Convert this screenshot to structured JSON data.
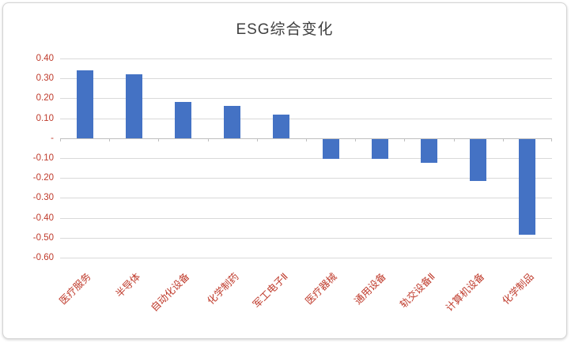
{
  "title": "ESG综合变化",
  "colors": {
    "bar": "#4472C4",
    "axis_label": "#bf3a2b",
    "gridline": "#d9d9d9",
    "zero_axis": "#bfbfbf",
    "title": "#404040"
  },
  "chart_data": {
    "type": "bar",
    "title": "ESG综合变化",
    "categories": [
      "医疗服务",
      "半导体",
      "自动化设备",
      "化学制药",
      "军工电子Ⅱ",
      "医疗器械",
      "通用设备",
      "轨交设备Ⅱ",
      "计算机设备",
      "化学制品"
    ],
    "values": [
      0.34,
      0.32,
      0.18,
      0.16,
      0.12,
      -0.1,
      -0.1,
      -0.12,
      -0.21,
      -0.48
    ],
    "xlabel": "",
    "ylabel": "",
    "ylim": [
      -0.6,
      0.4
    ],
    "ytick_step": 0.1,
    "ytick_labels": [
      "0.40",
      "0.30",
      "0.20",
      "0.10",
      "-",
      "-0.10",
      "-0.20",
      "-0.30",
      "-0.40",
      "-0.50",
      "-0.60"
    ],
    "grid": true,
    "legend": "none"
  }
}
